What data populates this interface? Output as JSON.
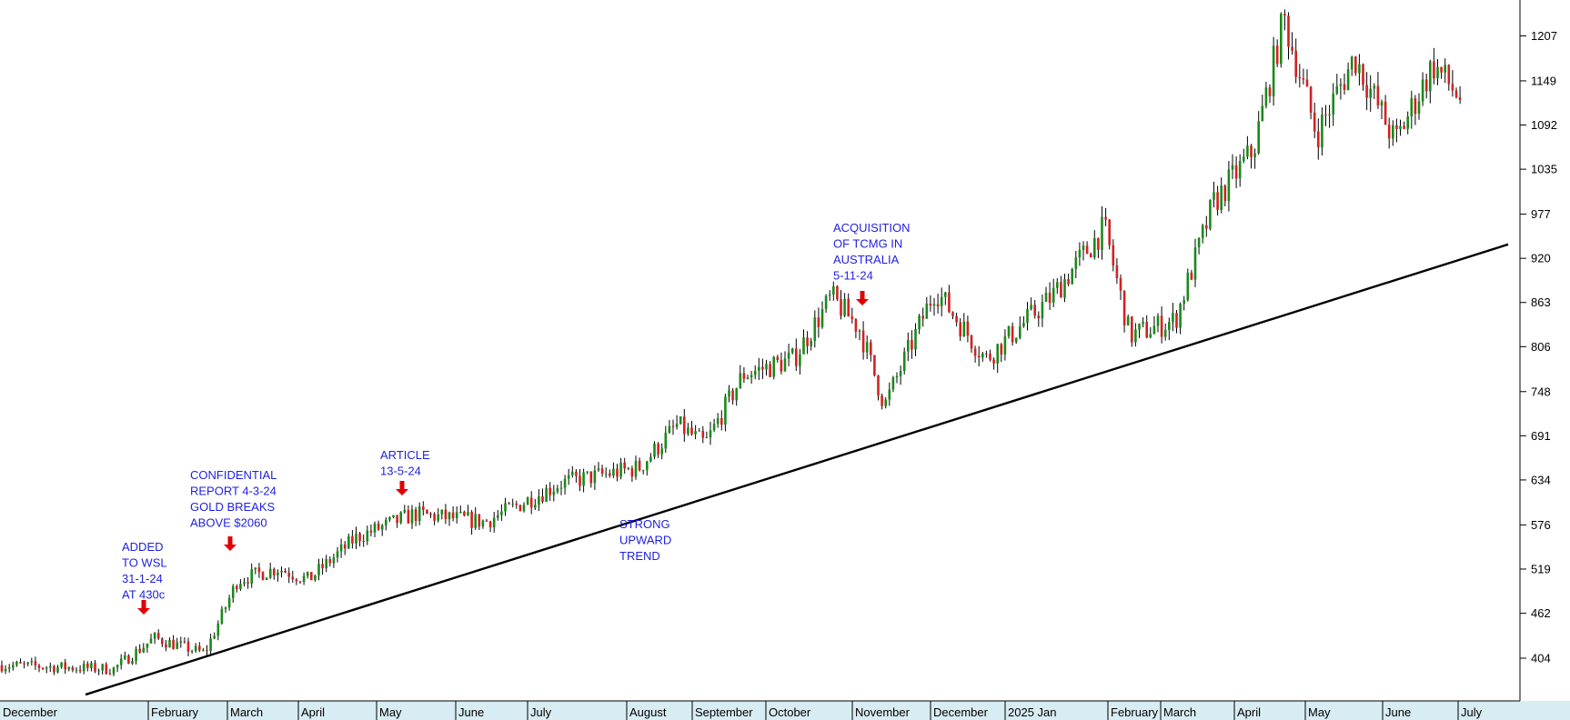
{
  "chart_data": {
    "type": "candlestick",
    "title": "",
    "xlabel": "",
    "ylabel": "",
    "ylim": [
      343,
      1268
    ],
    "y_ticks": [
      404,
      462,
      519,
      576,
      634,
      691,
      748,
      806,
      863,
      920,
      977,
      1035,
      1092,
      1149,
      1207
    ],
    "x_ticks": [
      "December",
      "February",
      "March",
      "April",
      "May",
      "June",
      "July",
      "August",
      "September",
      "October",
      "November",
      "December",
      "2025 Jan",
      "February",
      "March",
      "April",
      "May",
      "June",
      "July"
    ],
    "up_color": "#1a8a1a",
    "down_color": "#d42020",
    "annotation_color": "#1f1fe0",
    "arrow_color": "#e00000",
    "grid": false,
    "series": [
      {
        "name": "",
        "points": [
          {
            "t": "2023-12",
            "v": 395
          },
          {
            "t": "2024-01-15",
            "v": 390
          },
          {
            "t": "2024-01-31",
            "v": 430
          },
          {
            "t": "2024-02-20",
            "v": 410
          },
          {
            "t": "2024-03-04",
            "v": 505
          },
          {
            "t": "2024-03-20",
            "v": 520
          },
          {
            "t": "2024-04-01",
            "v": 505
          },
          {
            "t": "2024-04-20",
            "v": 560
          },
          {
            "t": "2024-05-13",
            "v": 590
          },
          {
            "t": "2024-06-10",
            "v": 580
          },
          {
            "t": "2024-07-10",
            "v": 630
          },
          {
            "t": "2024-08-10",
            "v": 650
          },
          {
            "t": "2024-08-25",
            "v": 705
          },
          {
            "t": "2024-09-05",
            "v": 680
          },
          {
            "t": "2024-09-20",
            "v": 770
          },
          {
            "t": "2024-10-10",
            "v": 790
          },
          {
            "t": "2024-10-25",
            "v": 870
          },
          {
            "t": "2024-11-05",
            "v": 830
          },
          {
            "t": "2024-11-15",
            "v": 730
          },
          {
            "t": "2024-12-05",
            "v": 880
          },
          {
            "t": "2024-12-25",
            "v": 790
          },
          {
            "t": "2025-01-20",
            "v": 870
          },
          {
            "t": "2025-02-10",
            "v": 960
          },
          {
            "t": "2025-02-20",
            "v": 820
          },
          {
            "t": "2025-03-10",
            "v": 840
          },
          {
            "t": "2025-03-25",
            "v": 990
          },
          {
            "t": "2025-04-10",
            "v": 1060
          },
          {
            "t": "2025-04-22",
            "v": 1230
          },
          {
            "t": "2025-05-05",
            "v": 1080
          },
          {
            "t": "2025-05-20",
            "v": 1180
          },
          {
            "t": "2025-06-05",
            "v": 1070
          },
          {
            "t": "2025-06-20",
            "v": 1170
          },
          {
            "t": "2025-07-05",
            "v": 1110
          }
        ]
      }
    ],
    "trendline": {
      "from": {
        "t": "2023-12-30",
        "v": 357
      },
      "to": {
        "t": "2025-07-25",
        "v": 938
      }
    },
    "annotations": [
      {
        "lines": [
          "ADDED",
          "TO WSL",
          "31-1-24",
          "AT 430c"
        ]
      },
      {
        "lines": [
          "CONFIDENTIAL",
          "REPORT 4-3-24",
          "GOLD BREAKS",
          "ABOVE $2060"
        ]
      },
      {
        "lines": [
          "ARTICLE",
          "13-5-24"
        ]
      },
      {
        "lines": [
          "STRONG",
          "UPWARD",
          "TREND"
        ]
      },
      {
        "lines": [
          "ACQUISITION",
          "OF TCMG IN",
          "AUSTRALIA",
          "5-11-24"
        ]
      }
    ]
  }
}
